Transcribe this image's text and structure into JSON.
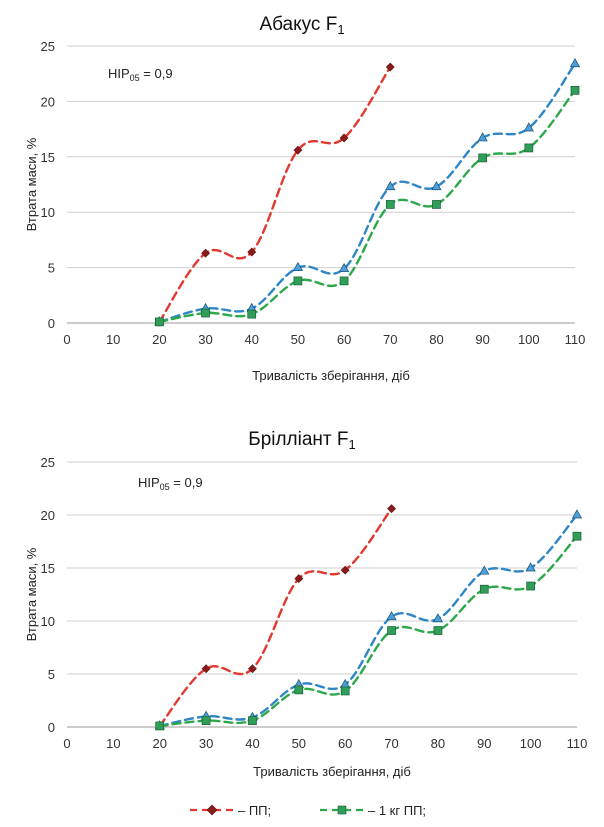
{
  "chart_data": [
    {
      "type": "line",
      "title": "Абакус F",
      "title_subscript": "1",
      "annotation": "HIP",
      "annotation_subscript": "05",
      "annotation_value": " = 0,9",
      "xlabel": "Тривалість зберігання, діб",
      "ylabel": "Втрата маси, %",
      "xlim": [
        0,
        110
      ],
      "ylim": [
        0,
        25
      ],
      "xticks": [
        "0",
        "10",
        "20",
        "30",
        "40",
        "50",
        "60",
        "70",
        "80",
        "90",
        "100",
        "110"
      ],
      "yticks": [
        "0",
        "5",
        "10",
        "15",
        "20",
        "25"
      ],
      "grid": true,
      "series": [
        {
          "name": "ПП",
          "color": "#e03a2f",
          "marker": "diamond",
          "marker_color": "#8b1a1a",
          "x": [
            20,
            30,
            40,
            50,
            60,
            70
          ],
          "y": [
            0.1,
            6.3,
            6.4,
            15.6,
            16.7,
            23.1
          ]
        },
        {
          "color": "#2f86c6",
          "marker": "triangle",
          "marker_color": "#4a9fd8",
          "x": [
            20,
            30,
            40,
            50,
            60,
            70,
            80,
            90,
            100,
            110
          ],
          "y": [
            0.1,
            1.3,
            1.3,
            5.0,
            4.9,
            12.3,
            12.3,
            16.7,
            17.6,
            23.4
          ]
        },
        {
          "name": "1 кг ПП",
          "color": "#2ca84a",
          "marker": "square",
          "marker_color": "#2f9e58",
          "x": [
            20,
            30,
            40,
            50,
            60,
            70,
            80,
            90,
            100,
            110
          ],
          "y": [
            0.1,
            0.9,
            0.8,
            3.8,
            3.8,
            10.7,
            10.7,
            14.9,
            15.8,
            21.0
          ]
        }
      ]
    },
    {
      "type": "line",
      "title": "Брілліант F",
      "title_subscript": "1",
      "annotation": "HIP",
      "annotation_subscript": "05",
      "annotation_value": " = 0,9",
      "xlabel": "Тривалість зберігання, діб",
      "ylabel": "Втрата маси, %",
      "xlim": [
        0,
        110
      ],
      "ylim": [
        0,
        25
      ],
      "xticks": [
        "0",
        "10",
        "20",
        "30",
        "40",
        "50",
        "60",
        "70",
        "80",
        "90",
        "100",
        "110"
      ],
      "yticks": [
        "0",
        "5",
        "10",
        "15",
        "20",
        "25"
      ],
      "grid": true,
      "series": [
        {
          "name": "ПП",
          "color": "#e03a2f",
          "marker": "diamond",
          "marker_color": "#8b1a1a",
          "x": [
            20,
            30,
            40,
            50,
            60,
            70
          ],
          "y": [
            0.1,
            5.5,
            5.5,
            14.0,
            14.8,
            20.6
          ]
        },
        {
          "color": "#2f86c6",
          "marker": "triangle",
          "marker_color": "#4a9fd8",
          "x": [
            20,
            30,
            40,
            50,
            60,
            70,
            80,
            90,
            100,
            110
          ],
          "y": [
            0.1,
            1.0,
            0.9,
            4.0,
            4.0,
            10.4,
            10.2,
            14.7,
            15.0,
            20.0
          ]
        },
        {
          "name": "1 кг ПП",
          "color": "#2ca84a",
          "marker": "square",
          "marker_color": "#2f9e58",
          "x": [
            20,
            30,
            40,
            50,
            60,
            70,
            80,
            90,
            100,
            110
          ],
          "y": [
            0.1,
            0.6,
            0.6,
            3.5,
            3.4,
            9.1,
            9.1,
            13.0,
            13.3,
            18.0
          ]
        }
      ]
    }
  ],
  "legend": [
    {
      "text": "– ПП;",
      "color": "#e03a2f",
      "marker": "diamond",
      "marker_color": "#8b1a1a"
    },
    {
      "text": "– 1 кг ПП;",
      "color": "#2ca84a",
      "marker": "square",
      "marker_color": "#2f9e58"
    }
  ]
}
